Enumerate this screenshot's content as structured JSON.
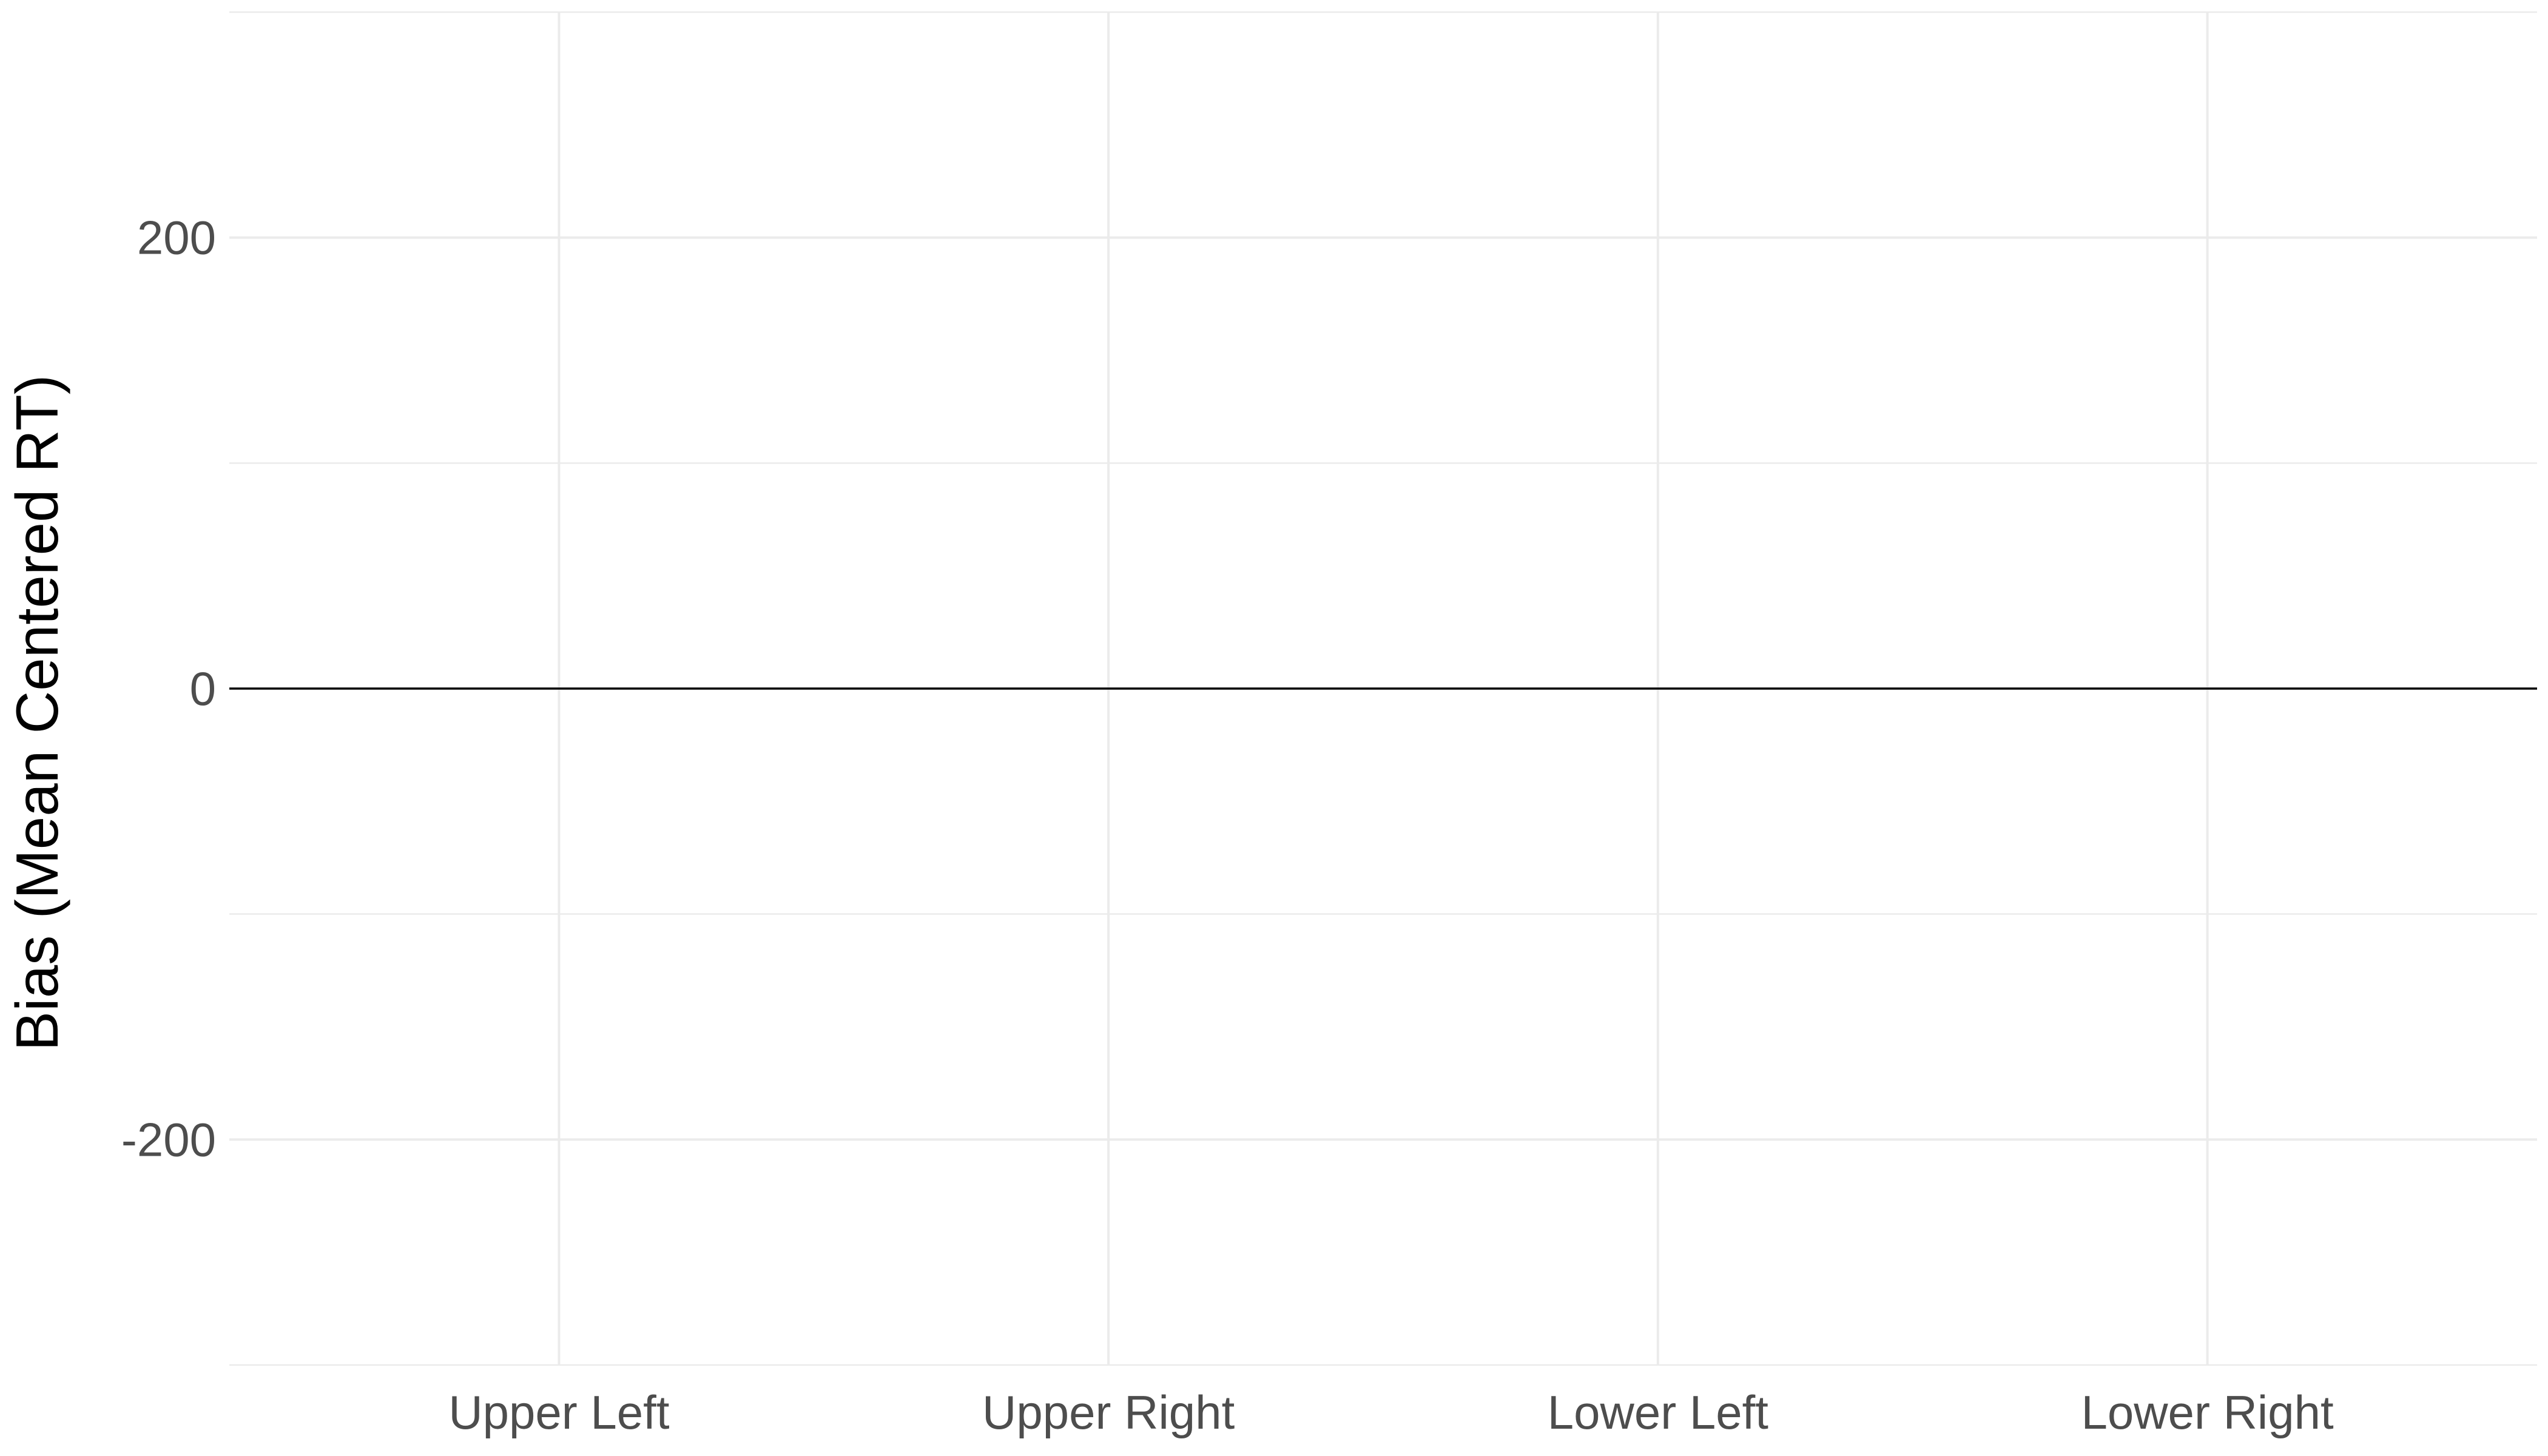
{
  "chart_data": {
    "type": "bar",
    "title": "",
    "xlabel": "",
    "ylabel": "Bias (Mean Centered RT)",
    "categories": [
      "Upper Left",
      "Upper Right",
      "Lower Left",
      "Lower Right"
    ],
    "values": [
      0,
      0,
      0,
      0
    ],
    "ylim": [
      -300,
      300
    ],
    "y_ticks": [
      -200,
      0,
      200
    ],
    "y_tick_labels": [
      "-200",
      "0",
      "200"
    ],
    "grid": true,
    "reference_line_y": 0,
    "legend": "none",
    "colors": {
      "grid": "#ebebeb",
      "reference_line": "#000000",
      "tick_text": "#4d4d4d",
      "axis_title": "#000000"
    }
  }
}
